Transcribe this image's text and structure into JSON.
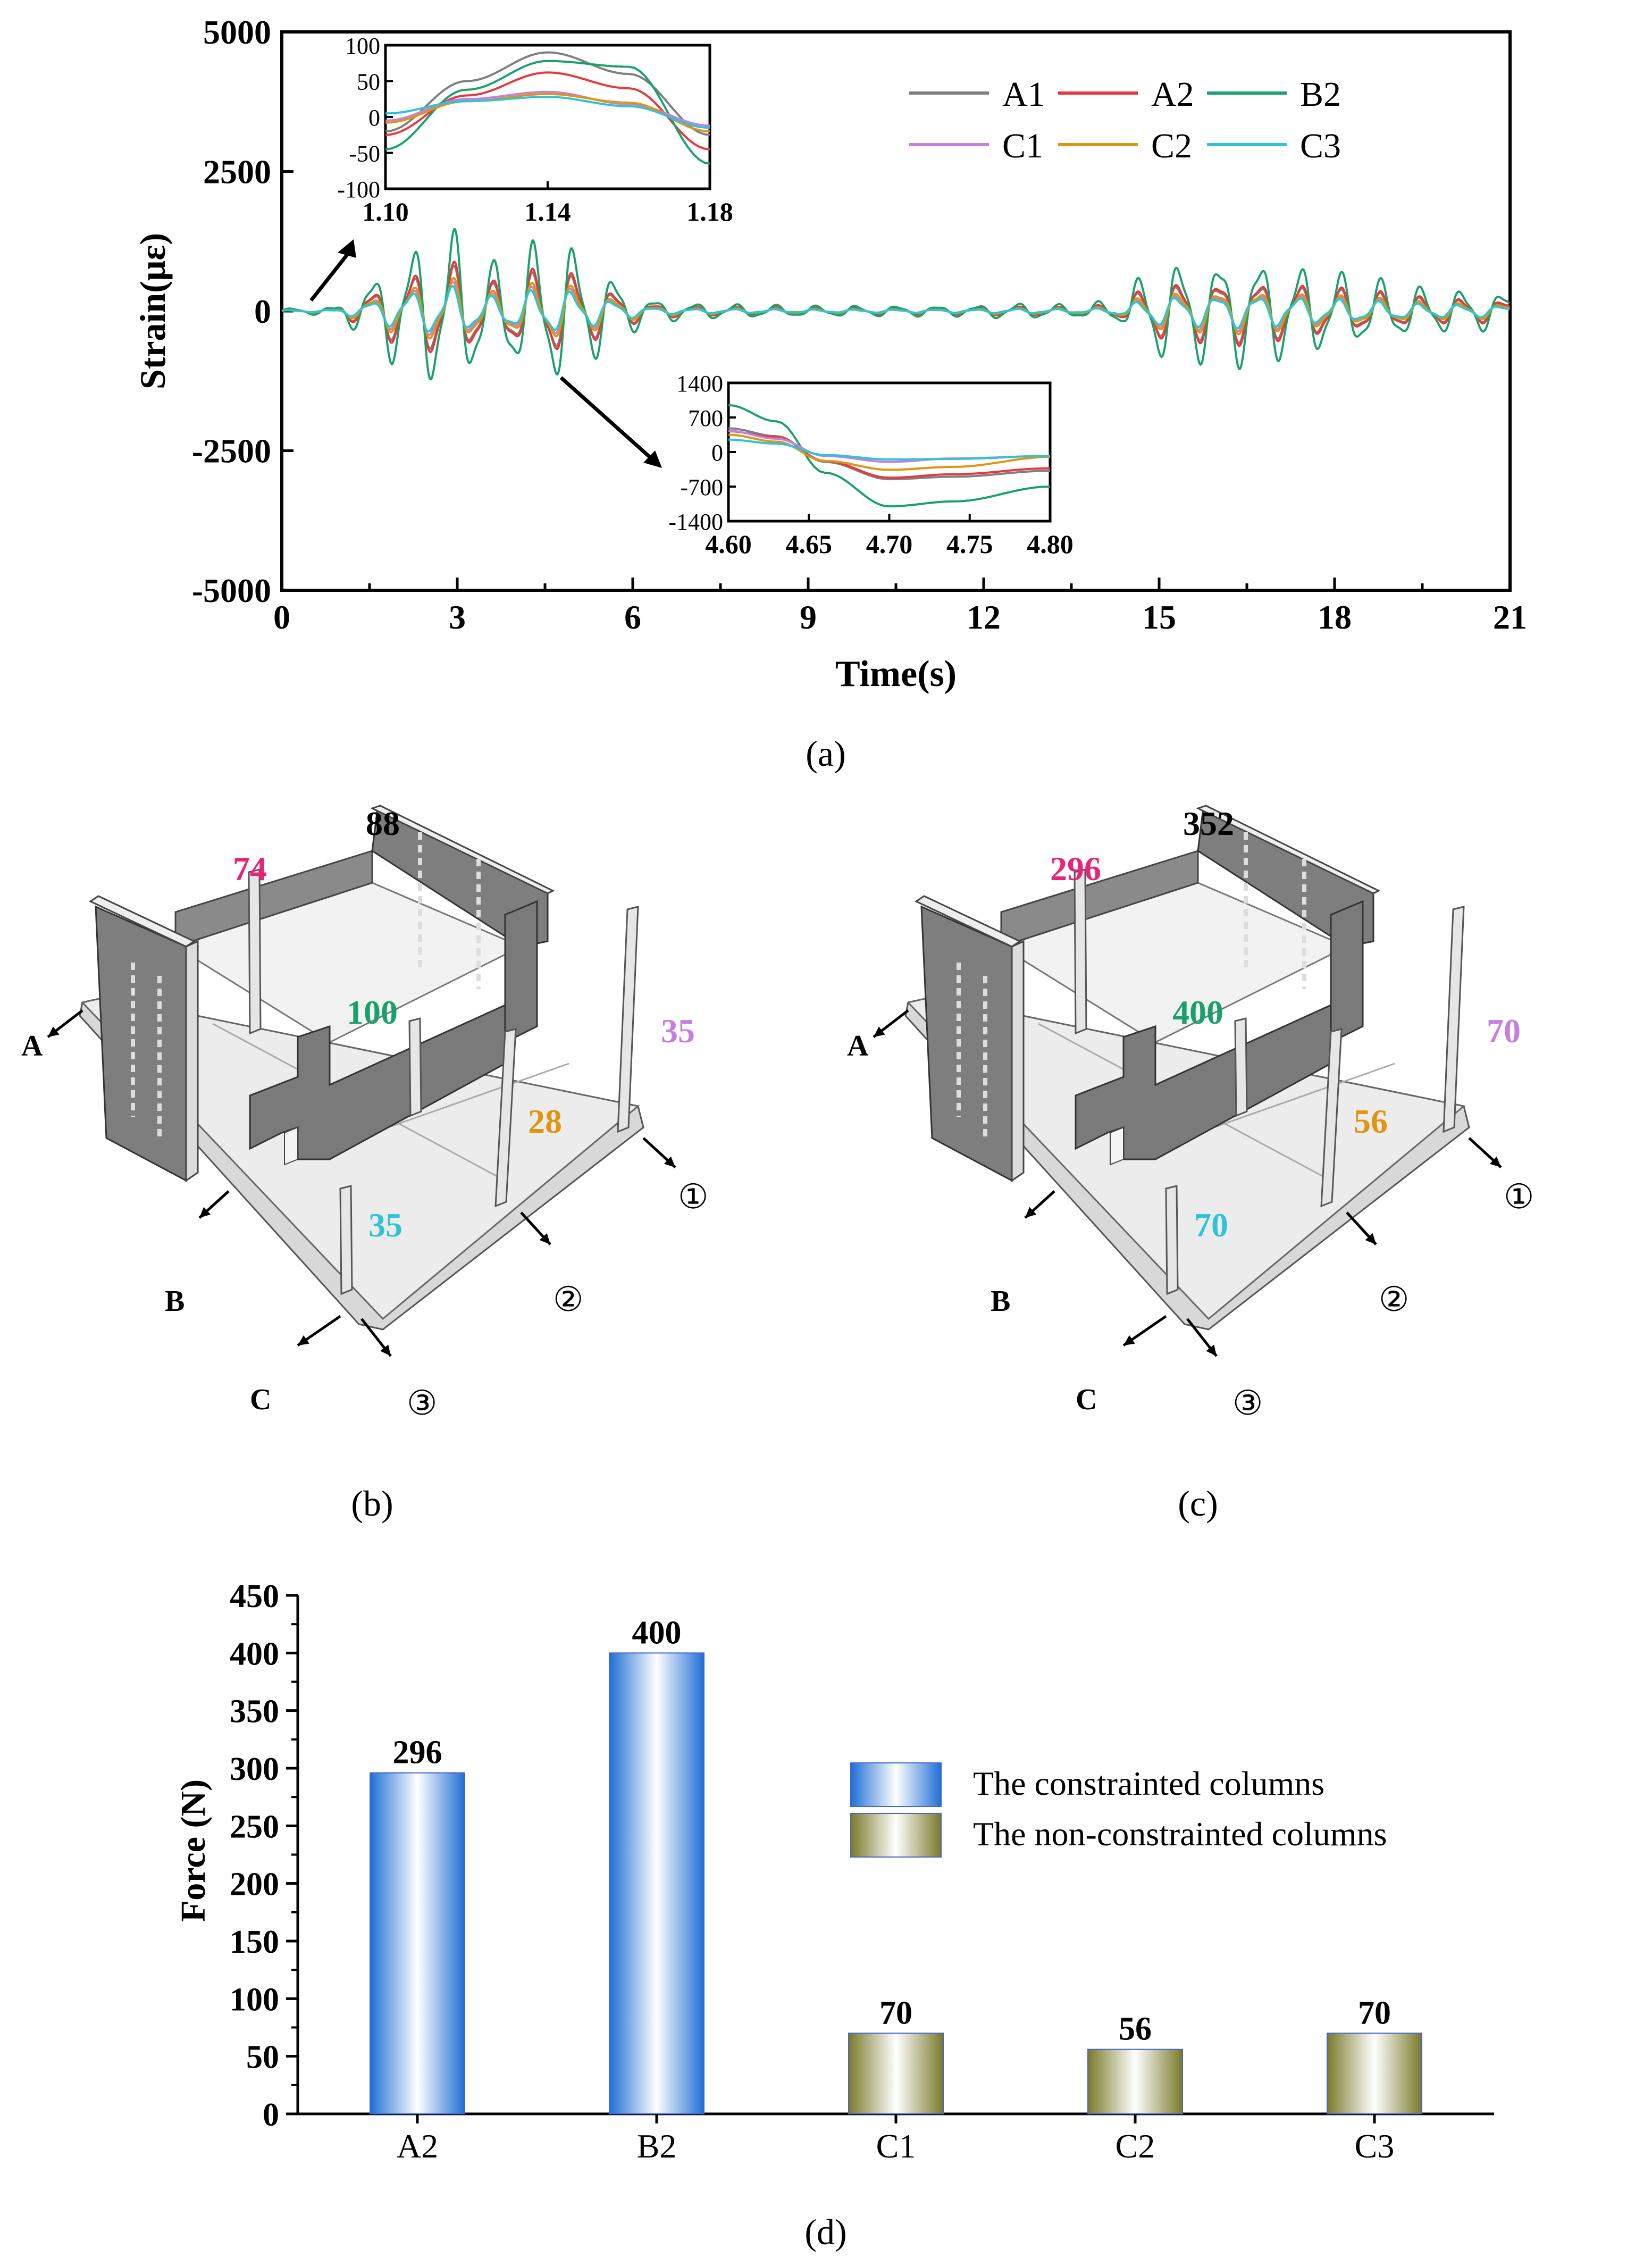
{
  "chart_data": [
    {
      "id": "a",
      "type": "line",
      "caption": "(a)",
      "xlabel": "Time(s)",
      "ylabel": "Strain(με)",
      "xlim": [
        0,
        21
      ],
      "ylim": [
        -5000,
        5000
      ],
      "xticks": [
        0,
        3,
        6,
        9,
        12,
        15,
        18,
        21
      ],
      "yticks": [
        5000,
        2500,
        0,
        -2500,
        -5000
      ],
      "ytick_labels": [
        "5000",
        "2500",
        "0",
        "-2500",
        "-5000"
      ],
      "legend": [
        "A1",
        "A2",
        "B2",
        "C1",
        "C2",
        "C3"
      ],
      "series": [
        {
          "name": "A1",
          "color": "#7f7f7f",
          "amp": 0.55
        },
        {
          "name": "A2",
          "color": "#e8383d",
          "amp": 0.6
        },
        {
          "name": "B2",
          "color": "#1aa16b",
          "amp": 1.0
        },
        {
          "name": "C1",
          "color": "#c57fe0",
          "amp": 0.35
        },
        {
          "name": "C2",
          "color": "#e0950f",
          "amp": 0.4
        },
        {
          "name": "C3",
          "color": "#2ec4d4",
          "amp": 0.3
        }
      ],
      "envelope": {
        "t": [
          0,
          0.9,
          1.3,
          2.0,
          2.9,
          3.6,
          4.3,
          4.8,
          5.5,
          6.2,
          7.0,
          9.0,
          11.8,
          12.4,
          13.6,
          14.4,
          14.8,
          16.5,
          18.0,
          19.5,
          21.0
        ],
        "amp": [
          50,
          80,
          400,
          1100,
          1600,
          900,
          1300,
          1400,
          800,
          250,
          150,
          100,
          100,
          150,
          120,
          250,
          900,
          1050,
          750,
          450,
          350
        ]
      },
      "insets": [
        {
          "id": "a1",
          "xlim": [
            1.1,
            1.18
          ],
          "ylim": [
            -100,
            100
          ],
          "xticks": [
            "1.10",
            "1.14",
            "1.18"
          ],
          "yticks": [
            "100",
            "50",
            "0",
            "-50",
            "-100"
          ],
          "series": [
            {
              "name": "A1",
              "x": [
                1.1,
                1.12,
                1.14,
                1.16,
                1.18
              ],
              "y": [
                -20,
                50,
                90,
                60,
                -25
              ]
            },
            {
              "name": "A2",
              "x": [
                1.1,
                1.12,
                1.14,
                1.16,
                1.18
              ],
              "y": [
                -25,
                30,
                62,
                40,
                -45
              ]
            },
            {
              "name": "B2",
              "x": [
                1.1,
                1.12,
                1.14,
                1.16,
                1.18
              ],
              "y": [
                -45,
                38,
                78,
                70,
                -65
              ]
            },
            {
              "name": "C1",
              "x": [
                1.1,
                1.12,
                1.14,
                1.16,
                1.18
              ],
              "y": [
                -5,
                25,
                35,
                18,
                -12
              ]
            },
            {
              "name": "C2",
              "x": [
                1.1,
                1.12,
                1.14,
                1.16,
                1.18
              ],
              "y": [
                -8,
                22,
                32,
                20,
                -20
              ]
            },
            {
              "name": "C3",
              "x": [
                1.1,
                1.12,
                1.14,
                1.16,
                1.18
              ],
              "y": [
                5,
                22,
                28,
                15,
                -15
              ]
            }
          ]
        },
        {
          "id": "a2",
          "xlim": [
            4.6,
            4.8
          ],
          "ylim": [
            -1400,
            1400
          ],
          "xticks": [
            "4.60",
            "4.65",
            "4.70",
            "4.75",
            "4.80"
          ],
          "yticks": [
            "1400",
            "700",
            "0",
            "-700",
            "-1400"
          ],
          "series": [
            {
              "name": "A1",
              "x": [
                4.6,
                4.63,
                4.66,
                4.7,
                4.74,
                4.8
              ],
              "y": [
                480,
                320,
                -200,
                -550,
                -500,
                -380
              ]
            },
            {
              "name": "A2",
              "x": [
                4.6,
                4.63,
                4.66,
                4.7,
                4.74,
                4.8
              ],
              "y": [
                420,
                300,
                -180,
                -520,
                -450,
                -330
              ]
            },
            {
              "name": "B2",
              "x": [
                4.6,
                4.63,
                4.66,
                4.7,
                4.74,
                4.8
              ],
              "y": [
                950,
                620,
                -420,
                -1100,
                -1000,
                -700
              ]
            },
            {
              "name": "C1",
              "x": [
                4.6,
                4.63,
                4.66,
                4.7,
                4.74,
                4.8
              ],
              "y": [
                430,
                270,
                -80,
                -200,
                -130,
                -80
              ]
            },
            {
              "name": "C2",
              "x": [
                4.6,
                4.63,
                4.66,
                4.7,
                4.74,
                4.8
              ],
              "y": [
                350,
                210,
                -180,
                -360,
                -300,
                -100
              ]
            },
            {
              "name": "C3",
              "x": [
                4.6,
                4.63,
                4.66,
                4.7,
                4.74,
                4.8
              ],
              "y": [
                250,
                170,
                -60,
                -150,
                -140,
                -80
              ]
            }
          ]
        }
      ]
    },
    {
      "id": "d",
      "type": "bar",
      "caption": "(d)",
      "categories": [
        "A2",
        "B2",
        "C1",
        "C2",
        "C3"
      ],
      "values": [
        296,
        400,
        70,
        56,
        70
      ],
      "bar_group": [
        "constrained",
        "constrained",
        "non",
        "non",
        "non"
      ],
      "ylabel": "Force (N)",
      "ylim": [
        0,
        450
      ],
      "yticks": [
        0,
        50,
        100,
        150,
        200,
        250,
        300,
        350,
        400,
        450
      ],
      "legend": [
        "The constrainted columns",
        "The non-constrainted columns"
      ],
      "colors": {
        "constrained": "#1f6fd6",
        "non": "#7a7a2a"
      }
    }
  ],
  "diagrams": {
    "b": {
      "caption": "(b)",
      "values": {
        "top": "88",
        "pink": "74",
        "green": "100",
        "purple": "35",
        "orange": "28",
        "cyan": "35"
      }
    },
    "c": {
      "caption": "(c)",
      "values": {
        "top": "352",
        "pink": "296",
        "green": "400",
        "purple": "70",
        "orange": "56",
        "cyan": "70"
      }
    },
    "axis_labels": {
      "a": "A",
      "b": "B",
      "c": "C",
      "n1": "①",
      "n2": "②",
      "n3": "③"
    },
    "colors": {
      "pink": "#e8237a",
      "green": "#1aa16b",
      "purple": "#c57fe0",
      "orange": "#e0950f",
      "cyan": "#2ec4d4"
    }
  }
}
